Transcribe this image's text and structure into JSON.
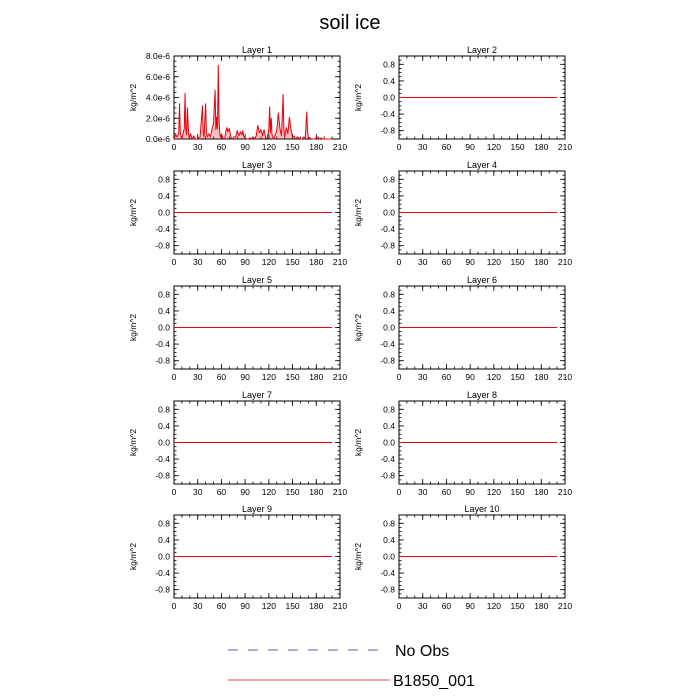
{
  "title": "soil ice",
  "legend": [
    {
      "label": "No Obs",
      "style": "dashed",
      "color": "#5b5bb5"
    },
    {
      "label": "B1850_001",
      "style": "solid",
      "color": "#e8474c"
    }
  ],
  "chart_data": [
    {
      "type": "line",
      "title": "Layer 1",
      "ylabel": "kg/m^2",
      "xlim": [
        0,
        210
      ],
      "ylim": [
        0,
        8e-06
      ],
      "xticks": [
        "0",
        "30",
        "60",
        "90",
        "120",
        "150",
        "180",
        "210"
      ],
      "yticks": [
        "0.0e-6",
        "2.0e-6",
        "4.0e-6",
        "6.0e-6",
        "8.0e-6"
      ],
      "series": [
        {
          "color": "#e8000b",
          "x": [
            0,
            2,
            4,
            6,
            7,
            8,
            10,
            12,
            13,
            14,
            15,
            16,
            17,
            18,
            19,
            21,
            23,
            25,
            27,
            29,
            30,
            33,
            36,
            37,
            38,
            40,
            41,
            42,
            44,
            46,
            48,
            50,
            52,
            53,
            54,
            55,
            56,
            57,
            58,
            59,
            60,
            62,
            64,
            66,
            67,
            68,
            70,
            72,
            74,
            76,
            78,
            80,
            82,
            84,
            86,
            87,
            88,
            90,
            92,
            94,
            96,
            98,
            100,
            102,
            104,
            106,
            108,
            110,
            112,
            114,
            116,
            118,
            120,
            121,
            122,
            123,
            124,
            126,
            128,
            130,
            132,
            134,
            136,
            138,
            139,
            140,
            142,
            144,
            146,
            148,
            150,
            152,
            154,
            156,
            158,
            160,
            162,
            164,
            166,
            168,
            169,
            170,
            172,
            174,
            176,
            178,
            180,
            182,
            184,
            186,
            188,
            190,
            192,
            194,
            196,
            198,
            200
          ],
          "y": [
            0,
            4e-07,
            2e-07,
            6e-07,
            3.4e-06,
            5e-07,
            0,
            7e-07,
            1e-06,
            4.4e-06,
            9e-07,
            4e-07,
            3e-06,
            1.2e-06,
            2e-07,
            5e-07,
            0,
            3e-07,
            0,
            0,
            1e-07,
            2e-07,
            3.2e-06,
            6e-07,
            2e-07,
            3.4e-06,
            6e-07,
            2e-07,
            5e-07,
            2e-07,
            9e-07,
            1.5e-06,
            4.7e-06,
            9e-07,
            2.1e-06,
            1e-06,
            7.1e-06,
            2e-06,
            4e-07,
            2e-07,
            5e-07,
            1e-07,
            0,
            9e-07,
            1.1e-06,
            7e-07,
            1e-06,
            2e-07,
            0,
            2e-07,
            2e-07,
            8e-07,
            3e-07,
            7e-07,
            4e-07,
            8e-07,
            3e-07,
            1e-07,
            0,
            0,
            1e-07,
            0,
            2e-07,
            0,
            3e-07,
            1.3e-06,
            6e-07,
            9e-07,
            3e-07,
            9e-07,
            1e-07,
            1e-07,
            1e-06,
            3.1e-06,
            6e-07,
            2e-06,
            4e-07,
            0,
            4e-07,
            8e-07,
            2.5e-06,
            1e-06,
            3e-07,
            4.3e-06,
            9e-07,
            2e-07,
            1.1e-06,
            5e-07,
            2.1e-06,
            9e-07,
            2e-07,
            3e-07,
            0,
            2e-07,
            1e-07,
            0,
            0,
            2e-07,
            1e-07,
            2.6e-06,
            7e-07,
            2e-07,
            1e-07,
            0,
            0,
            0,
            1e-07,
            2e-07,
            0,
            1e-07,
            0,
            0,
            0,
            0,
            0,
            0,
            0
          ]
        }
      ]
    },
    {
      "type": "line",
      "title": "Layer 2",
      "ylabel": "kg/m^2",
      "xlim": [
        0,
        210
      ],
      "ylim": [
        -1,
        1
      ],
      "xticks": [
        "0",
        "30",
        "60",
        "90",
        "120",
        "150",
        "180",
        "210"
      ],
      "yticks": [
        "-0.8",
        "-0.4",
        "0.0",
        "0.4",
        "0.8"
      ],
      "series": [
        {
          "color": "#e8000b",
          "x": [
            0,
            200
          ],
          "y": [
            0,
            0
          ]
        }
      ]
    },
    {
      "type": "line",
      "title": "Layer 3",
      "ylabel": "kg/m^2",
      "xlim": [
        0,
        210
      ],
      "ylim": [
        -1,
        1
      ],
      "xticks": [
        "0",
        "30",
        "60",
        "90",
        "120",
        "150",
        "180",
        "210"
      ],
      "yticks": [
        "-0.8",
        "-0.4",
        "0.0",
        "0.4",
        "0.8"
      ],
      "series": [
        {
          "color": "#e8000b",
          "x": [
            0,
            200
          ],
          "y": [
            0,
            0
          ]
        }
      ]
    },
    {
      "type": "line",
      "title": "Layer 4",
      "ylabel": "kg/m^2",
      "xlim": [
        0,
        210
      ],
      "ylim": [
        -1,
        1
      ],
      "xticks": [
        "0",
        "30",
        "60",
        "90",
        "120",
        "150",
        "180",
        "210"
      ],
      "yticks": [
        "-0.8",
        "-0.4",
        "0.0",
        "0.4",
        "0.8"
      ],
      "series": [
        {
          "color": "#e8000b",
          "x": [
            0,
            200
          ],
          "y": [
            0,
            0
          ]
        }
      ]
    },
    {
      "type": "line",
      "title": "Layer 5",
      "ylabel": "kg/m^2",
      "xlim": [
        0,
        210
      ],
      "ylim": [
        -1,
        1
      ],
      "xticks": [
        "0",
        "30",
        "60",
        "90",
        "120",
        "150",
        "180",
        "210"
      ],
      "yticks": [
        "-0.8",
        "-0.4",
        "0.0",
        "0.4",
        "0.8"
      ],
      "series": [
        {
          "color": "#e8000b",
          "x": [
            0,
            200
          ],
          "y": [
            0,
            0
          ]
        }
      ]
    },
    {
      "type": "line",
      "title": "Layer 6",
      "ylabel": "kg/m^2",
      "xlim": [
        0,
        210
      ],
      "ylim": [
        -1,
        1
      ],
      "xticks": [
        "0",
        "30",
        "60",
        "90",
        "120",
        "150",
        "180",
        "210"
      ],
      "yticks": [
        "-0.8",
        "-0.4",
        "0.0",
        "0.4",
        "0.8"
      ],
      "series": [
        {
          "color": "#e8000b",
          "x": [
            0,
            200
          ],
          "y": [
            0,
            0
          ]
        }
      ]
    },
    {
      "type": "line",
      "title": "Layer 7",
      "ylabel": "kg/m^2",
      "xlim": [
        0,
        210
      ],
      "ylim": [
        -1,
        1
      ],
      "xticks": [
        "0",
        "30",
        "60",
        "90",
        "120",
        "150",
        "180",
        "210"
      ],
      "yticks": [
        "-0.8",
        "-0.4",
        "0.0",
        "0.4",
        "0.8"
      ],
      "series": [
        {
          "color": "#e8000b",
          "x": [
            0,
            200
          ],
          "y": [
            0,
            0
          ]
        }
      ]
    },
    {
      "type": "line",
      "title": "Layer 8",
      "ylabel": "kg/m^2",
      "xlim": [
        0,
        210
      ],
      "ylim": [
        -1,
        1
      ],
      "xticks": [
        "0",
        "30",
        "60",
        "90",
        "120",
        "150",
        "180",
        "210"
      ],
      "yticks": [
        "-0.8",
        "-0.4",
        "0.0",
        "0.4",
        "0.8"
      ],
      "series": [
        {
          "color": "#e8000b",
          "x": [
            0,
            200
          ],
          "y": [
            0,
            0
          ]
        }
      ]
    },
    {
      "type": "line",
      "title": "Layer 9",
      "ylabel": "kg/m^2",
      "xlim": [
        0,
        210
      ],
      "ylim": [
        -1,
        1
      ],
      "xticks": [
        "0",
        "30",
        "60",
        "90",
        "120",
        "150",
        "180",
        "210"
      ],
      "yticks": [
        "-0.8",
        "-0.4",
        "0.0",
        "0.4",
        "0.8"
      ],
      "series": [
        {
          "color": "#e8000b",
          "x": [
            0,
            200
          ],
          "y": [
            0,
            0
          ]
        }
      ]
    },
    {
      "type": "line",
      "title": "Layer 10",
      "ylabel": "kg/m^2",
      "xlim": [
        0,
        210
      ],
      "ylim": [
        -1,
        1
      ],
      "xticks": [
        "0",
        "30",
        "60",
        "90",
        "120",
        "150",
        "180",
        "210"
      ],
      "yticks": [
        "-0.8",
        "-0.4",
        "0.0",
        "0.4",
        "0.8"
      ],
      "series": [
        {
          "color": "#e8000b",
          "x": [
            0,
            200
          ],
          "y": [
            0,
            0
          ]
        }
      ]
    }
  ]
}
